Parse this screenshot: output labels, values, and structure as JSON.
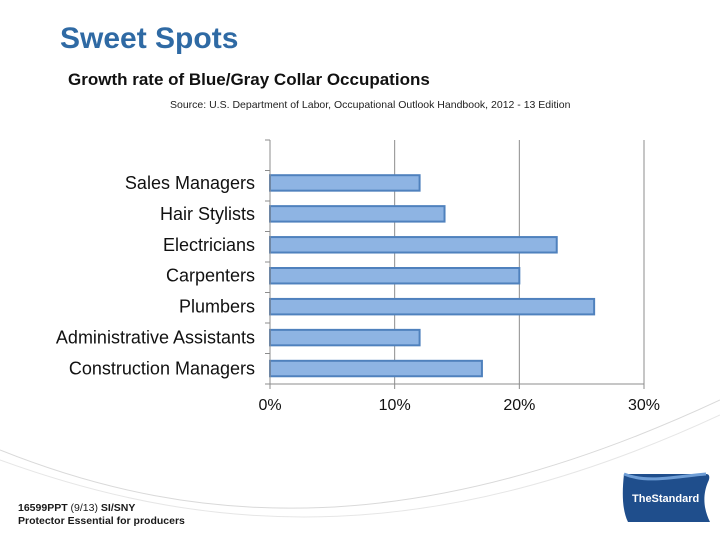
{
  "slide": {
    "title": "Sweet Spots",
    "footer_code": "16599PPT",
    "footer_date_code": "(9/13)",
    "footer_region": "SI/SNY",
    "footer_line2": "Protector Essential for producers",
    "logo_text": "TheStandard"
  },
  "chart_data": {
    "type": "bar",
    "orientation": "horizontal",
    "title": "Growth rate of Blue/Gray Collar Occupations",
    "subtitle": "Source: U.S. Department of Labor, Occupational Outlook Handbook, 2012 - 13 Edition",
    "categories": [
      "Sales Managers",
      "Hair Stylists",
      "Electricians",
      "Carpenters",
      "Plumbers",
      "Administrative Assistants",
      "Construction Managers"
    ],
    "values": [
      12,
      14,
      23,
      20,
      26,
      12,
      17
    ],
    "unit": "%",
    "xlim": [
      0,
      30
    ],
    "xticks": [
      "0%",
      "10%",
      "20%",
      "30%"
    ],
    "xtick_values": [
      0,
      10,
      20,
      30
    ],
    "grid": true,
    "legend": "none",
    "bar_fill": "#8eb4e3",
    "bar_stroke": "#4f81bd",
    "title_color": "#2f6aa4"
  }
}
